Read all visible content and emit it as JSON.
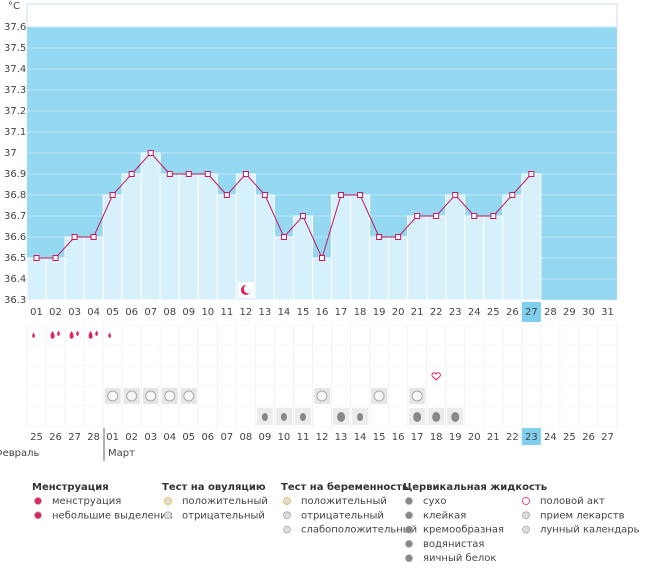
{
  "chart_data": {
    "type": "bbt",
    "y_label": "°C",
    "categories": [
      "01",
      "02",
      "03",
      "04",
      "05",
      "06",
      "07",
      "08",
      "09",
      "10",
      "11",
      "12",
      "13",
      "14",
      "15",
      "16",
      "17",
      "18",
      "19",
      "20",
      "21",
      "22",
      "23",
      "24",
      "25",
      "26",
      "27",
      "28",
      "29",
      "30",
      "31"
    ],
    "values": [
      36.5,
      36.5,
      36.6,
      36.6,
      36.8,
      36.9,
      37.0,
      36.9,
      36.9,
      36.9,
      36.8,
      36.9,
      36.8,
      36.6,
      36.7,
      36.5,
      36.8,
      36.8,
      36.6,
      36.6,
      36.7,
      36.7,
      36.8,
      36.7,
      36.7,
      36.8,
      36.9,
      null,
      null,
      null,
      null
    ],
    "ylim": [
      36.3,
      37.6
    ],
    "yticks": [
      36.3,
      36.4,
      36.5,
      36.6,
      36.7,
      36.8,
      36.9,
      37,
      37.1,
      37.2,
      37.3,
      37.4,
      37.5,
      37.6
    ],
    "color": "#c8185a",
    "bar_color": "#d6f1fc",
    "background_color": "#95d8f1",
    "calendar_dates": [
      "25",
      "26",
      "27",
      "28",
      "01",
      "02",
      "03",
      "04",
      "05",
      "06",
      "07",
      "08",
      "09",
      "10",
      "11",
      "12",
      "13",
      "14",
      "15",
      "16",
      "17",
      "18",
      "19",
      "20",
      "21",
      "22",
      "23",
      "24",
      "25",
      "26",
      "27"
    ],
    "months": [
      "Февраль",
      "Март"
    ]
  },
  "legend_groups": [
    {
      "title": "Менструация",
      "items": [
        "менструация",
        "небольшие выделения"
      ]
    },
    {
      "title": "Тест на овуляцию",
      "items": [
        "положительный",
        "отрицательный"
      ]
    },
    {
      "title": "Тест на беременность",
      "items": [
        "положительный",
        "отрицательный",
        "слабоположительный"
      ]
    },
    {
      "title": "Цервикальная жидкость",
      "items": [
        "сухо",
        "клейкая",
        "кремообразная",
        "водянистая",
        "яичный белок"
      ]
    },
    {
      "title": "",
      "items": [
        "половой акт",
        "прием лекарств",
        "лунный календарь"
      ]
    }
  ]
}
